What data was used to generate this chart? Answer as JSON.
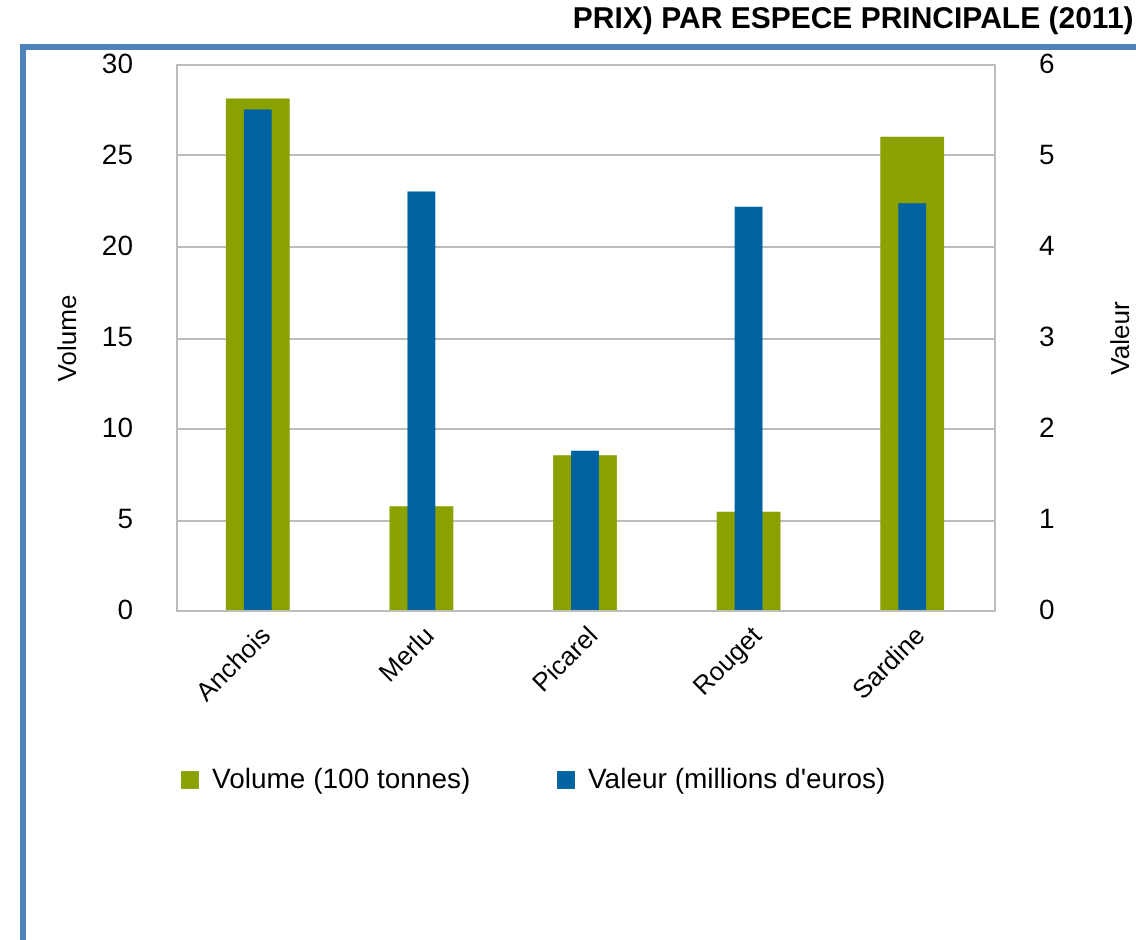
{
  "chart_data": {
    "type": "bar",
    "title": "PRIX) PAR ESPECE PRINCIPALE (2011)",
    "categories": [
      "Anchois",
      "Merlu",
      "Picarel",
      "Rouget",
      "Sardine"
    ],
    "series": [
      {
        "name": "Volume (100 tonnes)",
        "color": "#8aa100",
        "values": [
          28.1,
          5.7,
          8.5,
          5.4,
          26.0
        ]
      },
      {
        "name": "Valeur (millions d'euros)",
        "color": "#0062a0",
        "axis": "y2",
        "values": [
          5.5,
          4.6,
          1.75,
          4.43,
          4.47
        ]
      }
    ],
    "ylabel": "Volume",
    "y2label": "Valeur",
    "ylim": [
      0,
      30
    ],
    "yticks": [
      0,
      5,
      10,
      15,
      20,
      25,
      30
    ],
    "y2lim": [
      0,
      6
    ],
    "y2ticks": [
      0,
      1,
      2,
      3,
      4,
      5,
      6
    ],
    "grid": "y",
    "legend": "bottom"
  }
}
